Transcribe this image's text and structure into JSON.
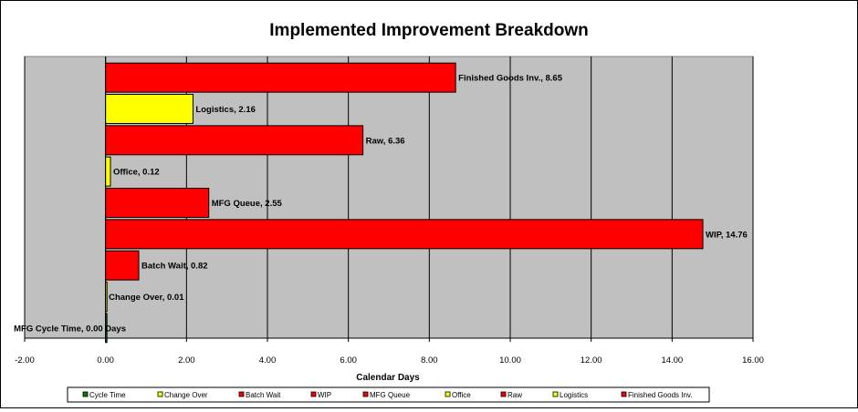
{
  "chart_data": {
    "type": "bar",
    "orientation": "horizontal",
    "title": "Implemented Improvement Breakdown",
    "xlabel": "Calendar Days",
    "ylabel": "",
    "xlim": [
      -2,
      16
    ],
    "x_ticks": [
      "-2.00",
      "0.00",
      "2.00",
      "4.00",
      "6.00",
      "8.00",
      "10.00",
      "12.00",
      "14.00",
      "16.00"
    ],
    "grid": "vertical",
    "plot_background": "#c0c0c0",
    "legend_placement": "bottom",
    "series": [
      {
        "name": "Cycle Time",
        "value": 0.0,
        "label": "MFG Cycle Time, 0.00 Days",
        "color": "#008000"
      },
      {
        "name": "Change Over",
        "value": 0.01,
        "label": "Change Over, 0.01",
        "color": "#ffff00"
      },
      {
        "name": "Batch Wait",
        "value": 0.82,
        "label": "Batch Wait, 0.82",
        "color": "#ff0000"
      },
      {
        "name": "WIP",
        "value": 14.76,
        "label": "WIP, 14.76",
        "color": "#ff0000"
      },
      {
        "name": "MFG Queue",
        "value": 2.55,
        "label": "MFG Queue, 2.55",
        "color": "#ff0000"
      },
      {
        "name": "Office",
        "value": 0.12,
        "label": "Office, 0.12",
        "color": "#ffff00"
      },
      {
        "name": "Raw",
        "value": 6.36,
        "label": "Raw, 6.36",
        "color": "#ff0000"
      },
      {
        "name": "Logistics",
        "value": 2.16,
        "label": "Logistics, 2.16",
        "color": "#ffff00"
      },
      {
        "name": "Finished Goods Inv.",
        "value": 8.65,
        "label": "Finished Goods Inv., 8.65",
        "color": "#ff0000"
      }
    ]
  }
}
